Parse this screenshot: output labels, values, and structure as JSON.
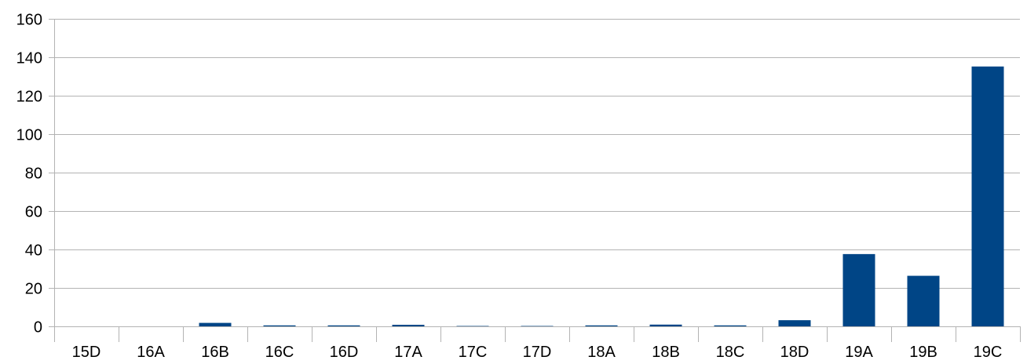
{
  "chart_data": {
    "type": "bar",
    "categories": [
      "15D",
      "16A",
      "16B",
      "16C",
      "16D",
      "17A",
      "17C",
      "17D",
      "18A",
      "18B",
      "18C",
      "18D",
      "19A",
      "19B",
      "19C"
    ],
    "series": [
      {
        "values": [
          0,
          0,
          1.8,
          0.5,
          0.5,
          0.8,
          0.2,
          0.2,
          0.5,
          0.9,
          0.5,
          3.2,
          37.6,
          26.3,
          135.2
        ],
        "color": "#004586"
      }
    ],
    "yticks": [
      0,
      20,
      40,
      60,
      80,
      100,
      120,
      140,
      160
    ],
    "ylim": [
      0,
      160
    ],
    "grid": true,
    "legend": "none",
    "title": "",
    "xlabel": "",
    "ylabel": ""
  }
}
